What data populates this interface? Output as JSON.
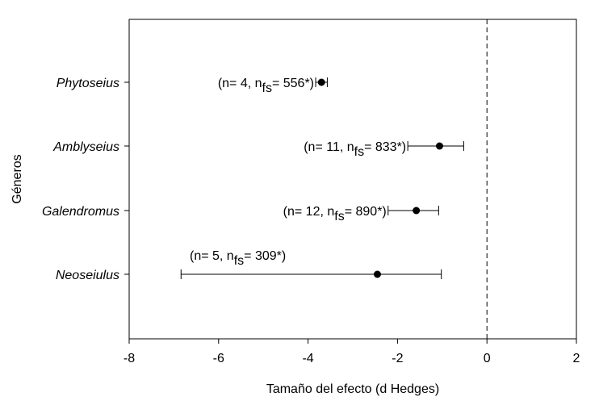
{
  "chart_data": {
    "type": "scatter",
    "subtype": "forest-plot",
    "title": "",
    "xlabel": "Tamaño del efecto (d Hedges)",
    "ylabel": "Géneros",
    "xlim": [
      -8,
      2
    ],
    "xticks": [
      -8,
      -6,
      -4,
      -2,
      0,
      2
    ],
    "reference_line": 0,
    "grid": false,
    "rows": [
      {
        "genus": "Phytoseius",
        "effect": -3.7,
        "ci_low": -3.83,
        "ci_high": -3.57,
        "n": "4",
        "nfs": "556*"
      },
      {
        "genus": "Amblyseius",
        "effect": -1.06,
        "ci_low": -1.77,
        "ci_high": -0.52,
        "n": "11",
        "nfs": "833*"
      },
      {
        "genus": "Galendromus",
        "effect": -1.58,
        "ci_low": -2.21,
        "ci_high": -1.08,
        "n": "12",
        "nfs": "890*"
      },
      {
        "genus": "Neoseiulus",
        "effect": -2.45,
        "ci_low": -6.84,
        "ci_high": -1.02,
        "n": "5",
        "nfs": "309*"
      }
    ]
  }
}
